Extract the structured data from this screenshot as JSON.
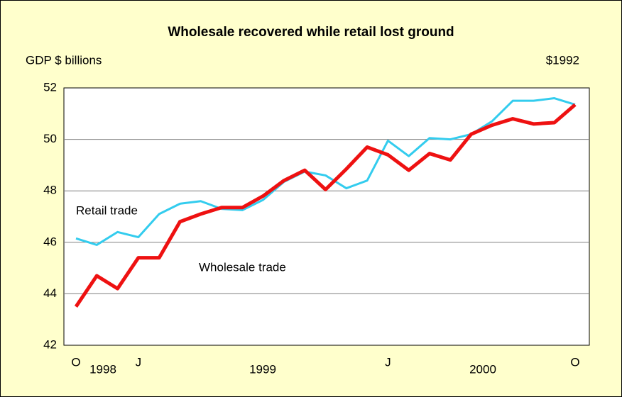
{
  "chart_data": {
    "type": "line",
    "title": "Wholesale recovered while retail lost ground",
    "y_label": "GDP $ billions",
    "units_note": "$1992",
    "categories": [
      "O",
      null,
      null,
      "J",
      null,
      null,
      null,
      null,
      null,
      null,
      null,
      null,
      null,
      null,
      null,
      "J",
      null,
      null,
      null,
      null,
      null,
      null,
      null,
      null,
      "O"
    ],
    "year_labels": [
      "1998",
      "1999",
      "2000"
    ],
    "series": [
      {
        "name": "Retail trade",
        "color": "#33ccee",
        "values": [
          46.15,
          45.9,
          46.4,
          46.2,
          47.1,
          47.5,
          47.6,
          47.3,
          47.25,
          47.65,
          48.35,
          48.75,
          48.6,
          48.1,
          48.4,
          49.95,
          49.35,
          50.05,
          50.0,
          50.2,
          50.7,
          51.5,
          51.5,
          51.6,
          51.35
        ]
      },
      {
        "name": "Wholesale trade",
        "color": "#ee1111",
        "values": [
          43.5,
          44.7,
          44.2,
          45.4,
          45.4,
          46.8,
          47.1,
          47.35,
          47.35,
          47.8,
          48.4,
          48.8,
          48.05,
          48.85,
          49.7,
          49.4,
          48.8,
          49.45,
          49.2,
          50.2,
          50.55,
          50.8,
          50.6,
          50.65,
          51.35
        ]
      }
    ],
    "ylim": [
      42,
      52
    ],
    "yticks": [
      42,
      44,
      46,
      48,
      50,
      52
    ],
    "grid": true
  }
}
